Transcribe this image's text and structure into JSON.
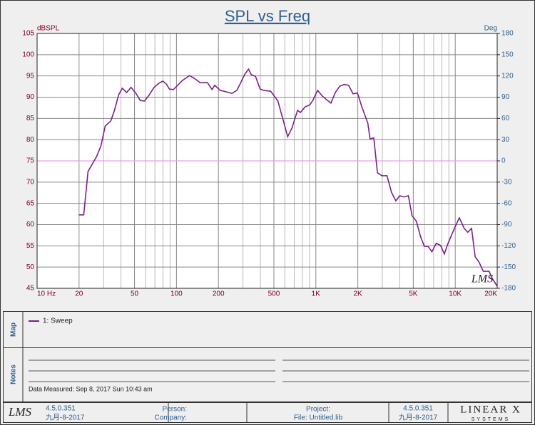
{
  "chart_data": {
    "type": "line",
    "title": "SPL vs Freq",
    "ylabel": "dBSPL",
    "y2label": "Deg",
    "xlog": true,
    "xlim": [
      10,
      20000
    ],
    "ylim": [
      45,
      105
    ],
    "y2lim": [
      -180,
      180
    ],
    "xticks": [
      {
        "value": 10,
        "label": "10 Hz"
      },
      20,
      50,
      100,
      200,
      500,
      {
        "value": 1000,
        "label": "1K"
      },
      {
        "value": 2000,
        "label": "2K"
      },
      {
        "value": 5000,
        "label": "5K"
      },
      {
        "value": 10000,
        "label": "10K"
      },
      {
        "value": 20000,
        "label": "20K"
      }
    ],
    "xminorticks": [
      30,
      40,
      60,
      70,
      80,
      90,
      300,
      400,
      600,
      700,
      800,
      900,
      3000,
      4000,
      6000,
      7000,
      8000,
      9000
    ],
    "yticks": [
      45,
      50,
      55,
      60,
      65,
      70,
      75,
      80,
      85,
      90,
      95,
      100,
      105
    ],
    "y2ticks": [
      -180,
      -150,
      -120,
      -90,
      -60,
      -30,
      0,
      30,
      60,
      90,
      120,
      150,
      180
    ],
    "grid": true,
    "reference_line": {
      "axis": "y2",
      "value": 0,
      "color": "#e6a0e6"
    },
    "x": [
      20,
      21.6,
      23.2,
      26.7,
      28.7,
      30.8,
      33.8,
      35.9,
      38.5,
      40.9,
      43.9,
      47.2,
      51.2,
      55,
      59,
      64,
      69,
      75,
      80,
      85,
      89,
      95,
      102,
      110,
      124,
      135,
      148,
      167,
      180,
      188,
      206,
      225,
      250,
      271,
      288,
      309,
      329,
      344,
      369,
      398,
      422,
      474,
      534,
      585,
      628,
      673,
      739,
      775,
      836,
      906,
      950,
      1030,
      1110,
      1195,
      1283,
      1380,
      1484,
      1597,
      1718,
      1848,
      1989,
      2139,
      2359,
      2448,
      2604,
      2767,
      2976,
      3240,
      3490,
      3750,
      4000,
      4290,
      4610,
      4900,
      5260,
      5650,
      6000,
      6380,
      6800,
      7310,
      7840,
      8350,
      8880,
      9950,
      10700,
      11600,
      12300,
      13100,
      13900,
      14800,
      15900,
      17500,
      18300,
      20000
    ],
    "series": [
      {
        "name": "1: Sweep",
        "color": "#7b1f8b",
        "values": [
          62.3,
          62.3,
          72.5,
          76,
          78.5,
          83.2,
          84.4,
          86.9,
          90.6,
          92.1,
          91.1,
          92.3,
          90.9,
          89.2,
          89.1,
          90.6,
          92.3,
          93.3,
          93.8,
          93,
          91.9,
          91.8,
          92.8,
          93.9,
          95.1,
          94.4,
          93.4,
          93.4,
          91.8,
          92.8,
          91.6,
          91.3,
          90.9,
          91.6,
          93.3,
          95.4,
          96.6,
          95.3,
          94.9,
          91.9,
          91.6,
          91.4,
          89.1,
          84.4,
          80.7,
          82.7,
          86.9,
          86.4,
          87.7,
          88.2,
          89.2,
          91.6,
          90.3,
          89.4,
          88.6,
          91.1,
          92.6,
          93,
          92.8,
          90.8,
          91,
          87.7,
          83.9,
          80.2,
          80.4,
          72.2,
          71.5,
          71.5,
          67.6,
          65.6,
          66.8,
          66.5,
          66.8,
          62.1,
          60.8,
          57.1,
          54.9,
          54.9,
          53.6,
          55.6,
          55.1,
          53.1,
          55.6,
          59.4,
          61.6,
          59.1,
          58.2,
          59.1,
          52.4,
          51.2,
          49,
          49,
          47.5,
          45.5
        ]
      }
    ]
  },
  "watermark": "LMS",
  "map_panel": {
    "label": "Map"
  },
  "notes_panel": {
    "label": "Notes",
    "measured": "Data Measured: Sep 8, 2017 Sun 10:43 am"
  },
  "footer": {
    "logo": "LMS",
    "version_left": "4.5.0.351",
    "date_left": "九月-8-2017",
    "person": "Person:",
    "company": "Company:",
    "project": "Project:",
    "file": "File: Untitled.lib",
    "version_right": "4.5.0.351",
    "date_right": "九月-8-2017",
    "brand": "LINEAR X",
    "brand_sub": "SYSTEMS"
  }
}
